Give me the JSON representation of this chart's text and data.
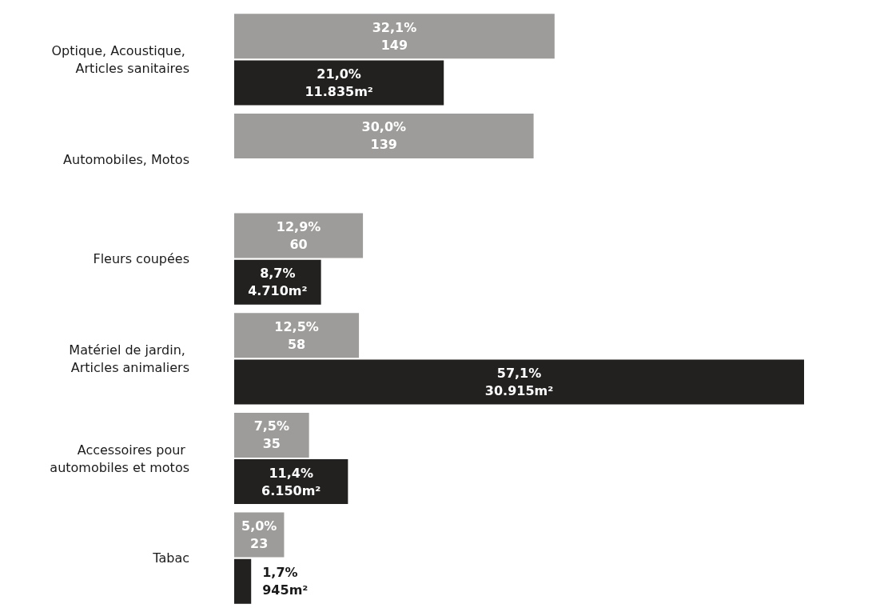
{
  "chart_data": {
    "type": "bar",
    "orientation": "horizontal",
    "categories": [
      "Optique, Acoustique, Articles sanitaires",
      "Automobiles, Motos",
      "Fleurs coupées",
      "Matériel de jardin, Articles animaliers",
      "Accessoires pour automobiles et motos",
      "Tabac"
    ],
    "series": [
      {
        "color": "#9d9c9a",
        "values": [
          32.1,
          30.0,
          12.9,
          12.5,
          7.5,
          5.0
        ],
        "value_labels": [
          "32,1%\n149",
          "30,0%\n139",
          "12,9%\n60",
          "12,5%\n58",
          "7,5%\n35",
          "5,0%\n23"
        ]
      },
      {
        "color": "#222120",
        "values": [
          21.0,
          null,
          8.7,
          57.1,
          11.4,
          1.7
        ],
        "value_labels": [
          "21,0%\n11.835m²",
          null,
          "8,7%\n4.710m²",
          "57,1%\n30.915m²",
          "11,4%\n6.150m²",
          "1,7%\n945m²"
        ]
      }
    ]
  }
}
